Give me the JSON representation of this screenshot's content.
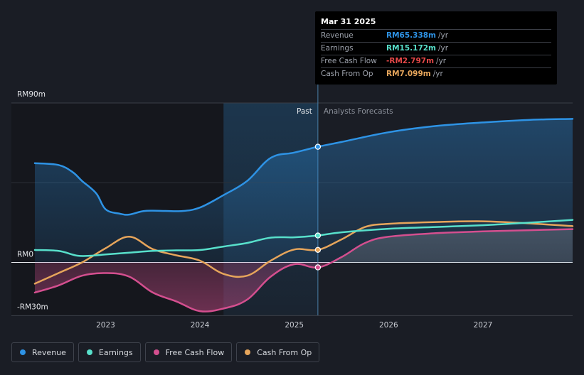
{
  "chart_data": {
    "type": "line",
    "x_start": 2022.25,
    "x_end": 2027.95,
    "ylim": [
      -30,
      90
    ],
    "y_ticks": [
      {
        "value": 90,
        "label": "RM90m"
      },
      {
        "value": 0,
        "label": "RM0"
      },
      {
        "value": -30,
        "label": "-RM30m"
      }
    ],
    "x_ticks": [
      {
        "value": 2023,
        "label": "2023"
      },
      {
        "value": 2024,
        "label": "2024"
      },
      {
        "value": 2025,
        "label": "2025"
      },
      {
        "value": 2026,
        "label": "2026"
      },
      {
        "value": 2027,
        "label": "2027"
      }
    ],
    "past_label": "Past",
    "forecast_label": "Analysts Forecasts",
    "forecast_start": 2025.25,
    "highlight_start": 2024.25,
    "series": [
      {
        "name": "Revenue",
        "color": "#2e93e5",
        "fill": true,
        "points": [
          [
            2022.25,
            56
          ],
          [
            2022.5,
            55
          ],
          [
            2022.65,
            51
          ],
          [
            2022.75,
            46
          ],
          [
            2022.9,
            39
          ],
          [
            2023.0,
            30
          ],
          [
            2023.15,
            27.5
          ],
          [
            2023.25,
            27
          ],
          [
            2023.4,
            29
          ],
          [
            2023.55,
            29.2
          ],
          [
            2023.8,
            29
          ],
          [
            2024.0,
            31
          ],
          [
            2024.25,
            38
          ],
          [
            2024.5,
            46
          ],
          [
            2024.75,
            59
          ],
          [
            2025.0,
            62
          ],
          [
            2025.25,
            65.3
          ],
          [
            2025.5,
            68
          ],
          [
            2026.0,
            73.5
          ],
          [
            2026.5,
            77
          ],
          [
            2027.0,
            79
          ],
          [
            2027.5,
            80.5
          ],
          [
            2027.95,
            81
          ]
        ]
      },
      {
        "name": "Earnings",
        "color": "#58e0cb",
        "fill": false,
        "points": [
          [
            2022.25,
            7
          ],
          [
            2022.5,
            6.5
          ],
          [
            2022.7,
            3.8
          ],
          [
            2022.85,
            3.8
          ],
          [
            2023.0,
            4.5
          ],
          [
            2023.25,
            5.5
          ],
          [
            2023.5,
            6.5
          ],
          [
            2023.75,
            6.8
          ],
          [
            2024.0,
            7
          ],
          [
            2024.25,
            9
          ],
          [
            2024.5,
            11
          ],
          [
            2024.75,
            14
          ],
          [
            2025.0,
            14.2
          ],
          [
            2025.25,
            15.2
          ],
          [
            2025.5,
            17
          ],
          [
            2026.0,
            19
          ],
          [
            2026.5,
            20
          ],
          [
            2027.0,
            21
          ],
          [
            2027.5,
            22.5
          ],
          [
            2027.95,
            24
          ]
        ]
      },
      {
        "name": "Free Cash Flow",
        "color": "#d44f8f",
        "fill": true,
        "points": [
          [
            2022.25,
            -17
          ],
          [
            2022.5,
            -13
          ],
          [
            2022.75,
            -7.5
          ],
          [
            2023.0,
            -6
          ],
          [
            2023.25,
            -8
          ],
          [
            2023.5,
            -17
          ],
          [
            2023.75,
            -22
          ],
          [
            2024.0,
            -27.5
          ],
          [
            2024.25,
            -26
          ],
          [
            2024.5,
            -21
          ],
          [
            2024.75,
            -8
          ],
          [
            2025.0,
            -1
          ],
          [
            2025.25,
            -2.8
          ],
          [
            2025.5,
            3
          ],
          [
            2025.75,
            11
          ],
          [
            2026.0,
            14.5
          ],
          [
            2026.5,
            16.5
          ],
          [
            2027.0,
            17.5
          ],
          [
            2027.5,
            18.2
          ],
          [
            2027.95,
            18.8
          ]
        ]
      },
      {
        "name": "Cash From Op",
        "color": "#e6a55b",
        "fill": false,
        "points": [
          [
            2022.25,
            -12
          ],
          [
            2022.5,
            -6
          ],
          [
            2022.75,
            0
          ],
          [
            2023.0,
            8
          ],
          [
            2023.25,
            14.5
          ],
          [
            2023.5,
            7.5
          ],
          [
            2023.75,
            4
          ],
          [
            2024.0,
            1
          ],
          [
            2024.25,
            -6.5
          ],
          [
            2024.5,
            -7.5
          ],
          [
            2024.75,
            1
          ],
          [
            2025.0,
            7.3
          ],
          [
            2025.25,
            7.1
          ],
          [
            2025.5,
            13
          ],
          [
            2025.75,
            20
          ],
          [
            2026.0,
            21.8
          ],
          [
            2026.5,
            22.8
          ],
          [
            2027.0,
            23.2
          ],
          [
            2027.5,
            22
          ],
          [
            2027.95,
            20.5
          ]
        ]
      }
    ],
    "markers": [
      {
        "x": 2025.25,
        "y": 65.3,
        "series": "Revenue"
      },
      {
        "x": 2025.25,
        "y": 15.2,
        "series": "Earnings"
      },
      {
        "x": 2025.25,
        "y": 7.1,
        "series": "Cash From Op"
      },
      {
        "x": 2025.25,
        "y": -2.8,
        "series": "Free Cash Flow"
      }
    ]
  },
  "tooltip": {
    "date": "Mar 31 2025",
    "rows": [
      {
        "label": "Revenue",
        "value": "RM65.338m",
        "unit": "/yr",
        "color": "#2e93e5"
      },
      {
        "label": "Earnings",
        "value": "RM15.172m",
        "unit": "/yr",
        "color": "#58e0cb"
      },
      {
        "label": "Free Cash Flow",
        "value": "-RM2.797m",
        "unit": "/yr",
        "color": "#e54848"
      },
      {
        "label": "Cash From Op",
        "value": "RM7.099m",
        "unit": "/yr",
        "color": "#e6a55b"
      }
    ]
  },
  "legend": [
    {
      "label": "Revenue",
      "color": "#2e93e5"
    },
    {
      "label": "Earnings",
      "color": "#58e0cb"
    },
    {
      "label": "Free Cash Flow",
      "color": "#d44f8f"
    },
    {
      "label": "Cash From Op",
      "color": "#e6a55b"
    }
  ]
}
